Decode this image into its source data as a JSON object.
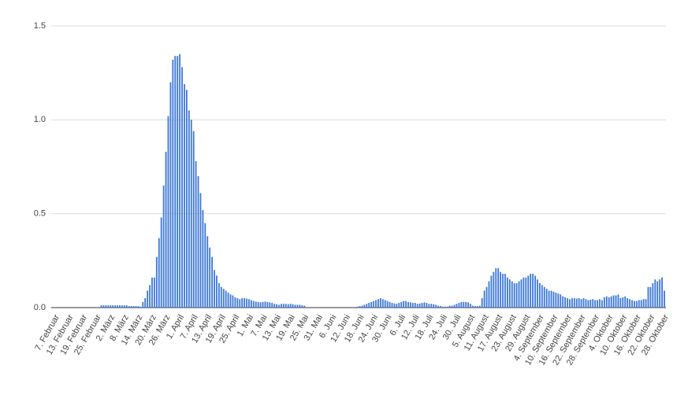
{
  "chart_data": {
    "type": "bar",
    "categories": [
      "7. Februar",
      null,
      null,
      null,
      null,
      null,
      "13. Februar",
      null,
      null,
      null,
      null,
      null,
      "19. Februar",
      null,
      null,
      null,
      null,
      null,
      "25. Februar",
      null,
      null,
      null,
      null,
      null,
      "2. März",
      null,
      null,
      null,
      null,
      null,
      "8. März",
      null,
      null,
      null,
      null,
      null,
      "14. März",
      null,
      null,
      null,
      null,
      null,
      "20. März",
      null,
      null,
      null,
      null,
      null,
      "26. März",
      null,
      null,
      null,
      null,
      null,
      "1. April",
      null,
      null,
      null,
      null,
      null,
      "7. April",
      null,
      null,
      null,
      null,
      null,
      "13. April",
      null,
      null,
      null,
      null,
      null,
      "19. April",
      null,
      null,
      null,
      null,
      null,
      "25. April",
      null,
      null,
      null,
      null,
      null,
      "1. Mai",
      null,
      null,
      null,
      null,
      null,
      "7. Mai",
      null,
      null,
      null,
      null,
      null,
      "13. Mai",
      null,
      null,
      null,
      null,
      null,
      "19. Mai",
      null,
      null,
      null,
      null,
      null,
      "25. Mai",
      null,
      null,
      null,
      null,
      null,
      "31. Mai",
      null,
      null,
      null,
      null,
      null,
      "6. Juni",
      null,
      null,
      null,
      null,
      null,
      "12. Juni",
      null,
      null,
      null,
      null,
      null,
      "18. Juni",
      null,
      null,
      null,
      null,
      null,
      "24. Juni",
      null,
      null,
      null,
      null,
      null,
      "30. Juni",
      null,
      null,
      null,
      null,
      null,
      "6. Juli",
      null,
      null,
      null,
      null,
      null,
      "12. Juli",
      null,
      null,
      null,
      null,
      null,
      "18. Juli",
      null,
      null,
      null,
      null,
      null,
      "24. Juli",
      null,
      null,
      null,
      null,
      null,
      "30. Juli",
      null,
      null,
      null,
      null,
      null,
      "5. August",
      null,
      null,
      null,
      null,
      null,
      "11. August",
      null,
      null,
      null,
      null,
      null,
      "17. August",
      null,
      null,
      null,
      null,
      null,
      "23. August",
      null,
      null,
      null,
      null,
      null,
      "29. August",
      null,
      null,
      null,
      null,
      null,
      "4. September",
      null,
      null,
      null,
      null,
      null,
      "10. September",
      null,
      null,
      null,
      null,
      null,
      "16. September",
      null,
      null,
      null,
      null,
      null,
      "22. September",
      null,
      null,
      null,
      null,
      null,
      "28. September",
      null,
      null,
      null,
      null,
      null,
      "4. Oktober",
      null,
      null,
      null,
      null,
      null,
      "10. Oktober",
      null,
      null,
      null,
      null,
      null,
      "16. Oktober",
      null,
      null,
      null,
      null,
      null,
      "22. Oktober",
      null,
      null,
      null,
      null,
      null,
      "28. Oktober"
    ],
    "values": [
      0,
      0,
      0,
      0,
      0,
      0,
      0,
      0,
      0,
      0,
      0,
      0,
      0,
      0,
      0,
      0,
      0,
      0,
      0,
      0,
      0.012,
      0.012,
      0.012,
      0.012,
      0.012,
      0.012,
      0.012,
      0.012,
      0.012,
      0.012,
      0.012,
      0.012,
      0.008,
      0.008,
      0.008,
      0.008,
      0.008,
      0.005,
      0.03,
      0.05,
      0.09,
      0.12,
      0.16,
      0.16,
      0.27,
      0.37,
      0.48,
      0.65,
      0.83,
      1.02,
      1.2,
      1.32,
      1.34,
      1.34,
      1.35,
      1.28,
      1.19,
      1.16,
      1.05,
      1.0,
      0.94,
      0.78,
      0.7,
      0.61,
      0.52,
      0.45,
      0.38,
      0.32,
      0.27,
      0.2,
      0.17,
      0.13,
      0.11,
      0.1,
      0.09,
      0.08,
      0.07,
      0.065,
      0.055,
      0.05,
      0.045,
      0.05,
      0.05,
      0.048,
      0.045,
      0.04,
      0.035,
      0.032,
      0.03,
      0.028,
      0.03,
      0.032,
      0.03,
      0.028,
      0.025,
      0.02,
      0.018,
      0.015,
      0.02,
      0.02,
      0.02,
      0.018,
      0.02,
      0.018,
      0.015,
      0.015,
      0.015,
      0.012,
      0.01,
      0,
      0,
      0,
      0,
      0,
      0,
      0,
      0,
      0,
      0,
      0,
      0,
      0,
      0,
      0,
      0,
      0,
      0,
      0,
      0,
      0,
      0,
      0.005,
      0.008,
      0.01,
      0.015,
      0.02,
      0.025,
      0.03,
      0.035,
      0.04,
      0.045,
      0.05,
      0.045,
      0.04,
      0.035,
      0.03,
      0.025,
      0.022,
      0.02,
      0.025,
      0.03,
      0.035,
      0.035,
      0.03,
      0.028,
      0.025,
      0.025,
      0.02,
      0.022,
      0.025,
      0.028,
      0.025,
      0.02,
      0.02,
      0.018,
      0.015,
      0.01,
      0.008,
      0.005,
      0.005,
      0.005,
      0.01,
      0.01,
      0.015,
      0.02,
      0.025,
      0.03,
      0.03,
      0.03,
      0.028,
      0.02,
      0.01,
      0.008,
      0.008,
      0.01,
      0.05,
      0.09,
      0.11,
      0.14,
      0.17,
      0.19,
      0.21,
      0.21,
      0.19,
      0.18,
      0.18,
      0.16,
      0.15,
      0.14,
      0.13,
      0.13,
      0.14,
      0.15,
      0.16,
      0.16,
      0.17,
      0.18,
      0.18,
      0.17,
      0.15,
      0.13,
      0.12,
      0.11,
      0.1,
      0.09,
      0.09,
      0.085,
      0.08,
      0.075,
      0.07,
      0.06,
      0.055,
      0.05,
      0.045,
      0.05,
      0.05,
      0.048,
      0.05,
      0.045,
      0.05,
      0.045,
      0.04,
      0.042,
      0.045,
      0.04,
      0.04,
      0.045,
      0.04,
      0.055,
      0.06,
      0.055,
      0.06,
      0.065,
      0.065,
      0.07,
      0.05,
      0.055,
      0.06,
      0.05,
      0.045,
      0.04,
      0.035,
      0.035,
      0.04,
      0.04,
      0.045,
      0.045,
      0.11,
      0.11,
      0.13,
      0.15,
      0.14,
      0.15,
      0.16,
      0.09
    ],
    "color": "#3c78d8",
    "ylim": [
      0,
      1.5
    ],
    "yticks": [
      {
        "value": 0,
        "label": "0.0"
      },
      0.5,
      {
        "value": 1,
        "label": "1.0"
      },
      1.5
    ],
    "grid": true
  }
}
